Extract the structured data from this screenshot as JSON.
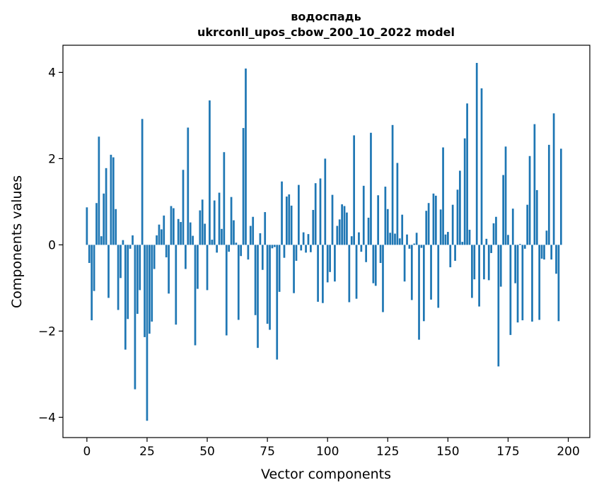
{
  "chart_data": {
    "type": "bar",
    "title": "водоспадь",
    "subtitle": "ukrconll_upos_cbow_200_10_2022 model",
    "xlabel": "Vector components",
    "ylabel": "Components values",
    "xlim": [
      -9.95,
      208.95
    ],
    "ylim": [
      -4.47,
      4.63
    ],
    "xticks": [
      0,
      25,
      50,
      75,
      100,
      125,
      150,
      175,
      200
    ],
    "xtick_labels": [
      "0",
      "25",
      "50",
      "75",
      "100",
      "125",
      "150",
      "175",
      "200"
    ],
    "yticks": [
      -4,
      -2,
      0,
      2,
      4
    ],
    "ytick_labels": [
      "−4",
      "−2",
      "0",
      "2",
      "4"
    ],
    "bar_color": "#1f77b4",
    "grid": false,
    "values": [
      0.87,
      -0.42,
      -1.75,
      -1.07,
      0.97,
      2.51,
      0.2,
      1.19,
      1.78,
      -1.23,
      2.09,
      2.03,
      0.83,
      -1.51,
      -0.77,
      0.11,
      -2.43,
      -1.72,
      -0.09,
      0.22,
      -3.35,
      -1.6,
      -1.05,
      2.92,
      -2.14,
      -4.08,
      -2.06,
      -1.78,
      -0.56,
      0.22,
      0.47,
      0.36,
      0.68,
      -0.29,
      -1.13,
      0.9,
      0.85,
      -1.85,
      0.6,
      0.53,
      1.74,
      -0.56,
      2.72,
      0.52,
      0.21,
      -2.33,
      -1.02,
      0.8,
      1.05,
      0.49,
      -1.05,
      3.35,
      0.12,
      1.03,
      -0.18,
      1.21,
      0.37,
      2.15,
      -2.1,
      -0.16,
      1.11,
      0.57,
      0.05,
      -1.74,
      -0.26,
      2.71,
      4.09,
      -0.34,
      0.44,
      0.65,
      -1.63,
      -2.39,
      0.27,
      -0.58,
      0.76,
      -1.83,
      -1.97,
      -0.08,
      -0.05,
      -2.66,
      -1.09,
      1.47,
      -0.3,
      1.12,
      1.17,
      0.91,
      -1.12,
      -0.37,
      1.39,
      -0.13,
      0.29,
      -0.18,
      0.25,
      -0.17,
      0.81,
      1.43,
      -1.32,
      1.54,
      -1.35,
      2.0,
      -0.87,
      -0.63,
      1.16,
      -0.85,
      0.44,
      0.59,
      0.94,
      0.9,
      0.75,
      -1.33,
      0.2,
      2.54,
      -1.25,
      0.29,
      -0.16,
      1.37,
      -0.4,
      0.63,
      2.6,
      -0.89,
      -0.95,
      1.15,
      -0.42,
      -1.56,
      1.35,
      0.83,
      0.28,
      2.78,
      0.26,
      1.9,
      0.15,
      0.7,
      -0.85,
      0.24,
      -0.09,
      -1.28,
      0.03,
      0.28,
      -2.2,
      -0.07,
      -1.77,
      0.79,
      0.97,
      -1.27,
      1.19,
      1.14,
      -1.46,
      0.82,
      2.26,
      0.24,
      0.3,
      -0.52,
      0.93,
      -0.37,
      1.28,
      1.72,
      0.07,
      2.47,
      3.28,
      0.35,
      -1.23,
      -0.8,
      4.22,
      -1.43,
      3.63,
      -0.8,
      0.14,
      -0.82,
      -0.19,
      0.5,
      0.65,
      -2.82,
      -0.97,
      1.62,
      2.28,
      0.23,
      -2.09,
      0.84,
      -0.89,
      -1.8,
      0.02,
      -1.75,
      -0.09,
      0.93,
      2.06,
      -1.78,
      2.8,
      1.27,
      -1.74,
      -0.32,
      -0.34,
      0.33,
      2.32,
      -0.34,
      3.05,
      -0.67,
      -1.77,
      2.23
    ]
  }
}
